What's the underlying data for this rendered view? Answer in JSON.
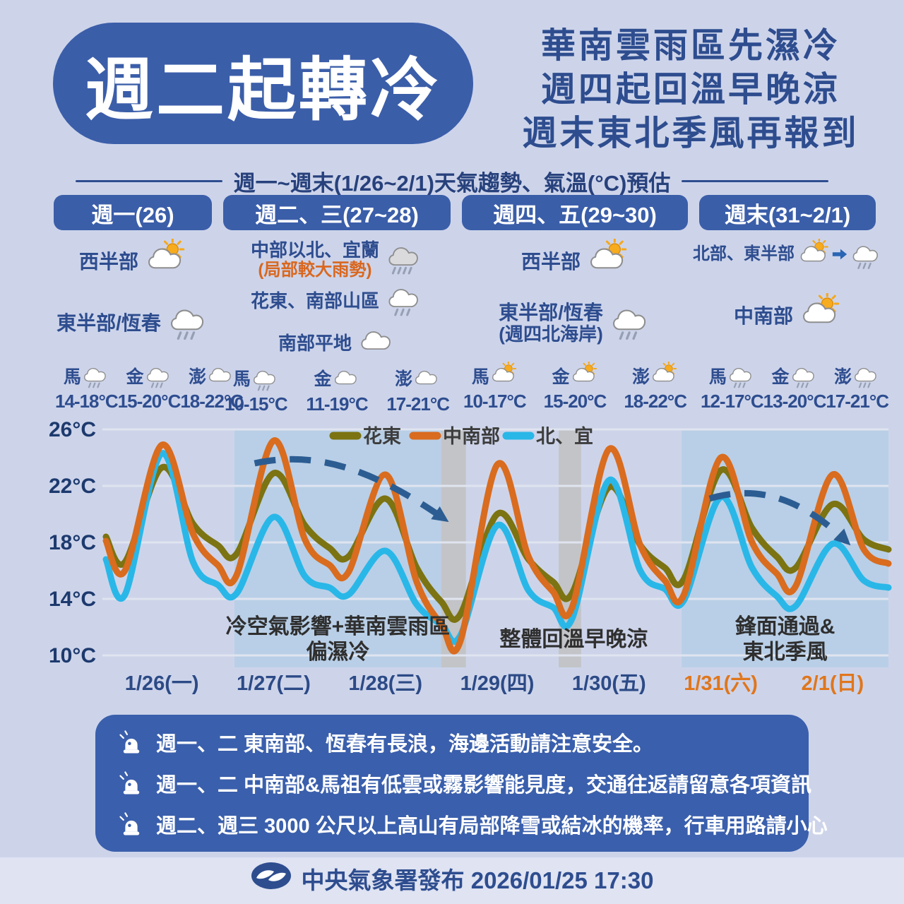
{
  "title": "週二起轉冷",
  "headline": {
    "lines": [
      "華南雲雨區先濕冷",
      "週四起回溫早晚涼",
      "週末東北季風再報到"
    ]
  },
  "subtitle": "週一~週末(1/26~2/1)天氣趨勢、氣溫(°C)預估",
  "forecast_columns": [
    {
      "header": "週一(26)",
      "regions": [
        {
          "label": "西半部",
          "icon": "partly-sunny"
        },
        {
          "label": "東半部/恆春",
          "icon": "rain"
        }
      ],
      "islands": [
        {
          "name": "馬",
          "icon": "rain",
          "temp": "14-18°C"
        },
        {
          "name": "金",
          "icon": "rain",
          "temp": "15-20°C"
        },
        {
          "name": "澎",
          "icon": "cloudy",
          "temp": "18-22°C"
        }
      ]
    },
    {
      "header": "週二、三(27~28)",
      "regions": [
        {
          "label": "中部以北、宜蘭",
          "sublabel": "(局部較大雨勢)",
          "sublabel_color": "#d9671e",
          "icon": "heavy-rain"
        },
        {
          "label": "花東、南部山區",
          "icon": "rain"
        },
        {
          "label": "南部平地",
          "icon": "cloudy"
        }
      ],
      "islands": [
        {
          "name": "馬",
          "icon": "rain",
          "temp": "10-15°C"
        },
        {
          "name": "金",
          "icon": "cloudy",
          "temp": "11-19°C"
        },
        {
          "name": "澎",
          "icon": "cloudy",
          "temp": "17-21°C"
        }
      ]
    },
    {
      "header": "週四、五(29~30)",
      "regions": [
        {
          "label": "西半部",
          "icon": "partly-sunny"
        },
        {
          "label": "東半部/恆春",
          "sublabel": "(週四北海岸)",
          "sublabel_color": "#2e4d8f",
          "icon": "rain"
        }
      ],
      "islands": [
        {
          "name": "馬",
          "icon": "partly-sunny",
          "temp": "10-17°C"
        },
        {
          "name": "金",
          "icon": "partly-sunny",
          "temp": "15-20°C"
        },
        {
          "name": "澎",
          "icon": "partly-sunny",
          "temp": "18-22°C"
        }
      ]
    },
    {
      "header": "週末(31~2/1)",
      "regions": [
        {
          "label": "北部、東半部",
          "icon": "partly-sunny-to-rain"
        },
        {
          "label": "中南部",
          "icon": "partly-sunny"
        }
      ],
      "islands": [
        {
          "name": "馬",
          "icon": "rain",
          "temp": "12-17°C"
        },
        {
          "name": "金",
          "icon": "rain",
          "temp": "13-20°C"
        },
        {
          "name": "澎",
          "icon": "rain",
          "temp": "17-21°C"
        }
      ]
    }
  ],
  "chart_data": {
    "type": "line",
    "title": "週一~週末(1/26~2/1)天氣趨勢、氣溫(°C)預估",
    "ylabel": "氣溫(°C)",
    "ylim": [
      10,
      26
    ],
    "yticks": [
      26,
      22,
      18,
      14,
      10
    ],
    "ytick_suffix": "°C",
    "grid": "horizontal",
    "legend_position": "top",
    "x_unit": "days since 1/26 00:00 (each day = 1.0, peak ≈ d+0.5)",
    "x_labels": [
      {
        "text": "1/26(一)",
        "color": "#2c4a86"
      },
      {
        "text": "1/27(二)",
        "color": "#2c4a86"
      },
      {
        "text": "1/28(三)",
        "color": "#2c4a86"
      },
      {
        "text": "1/29(四)",
        "color": "#2c4a86"
      },
      {
        "text": "1/30(五)",
        "color": "#2c4a86"
      },
      {
        "text": "1/31(六)",
        "color": "#e0761c"
      },
      {
        "text": "2/1(日)",
        "color": "#e0761c"
      }
    ],
    "series": [
      {
        "name": "花東",
        "color": "#7c7312",
        "points": [
          [
            0,
            18.4
          ],
          [
            0.17,
            16.6
          ],
          [
            0.5,
            23.3
          ],
          [
            0.78,
            19.3
          ],
          [
            1,
            17.8
          ],
          [
            1.17,
            17.2
          ],
          [
            1.5,
            22.9
          ],
          [
            1.78,
            19.2
          ],
          [
            2,
            17.6
          ],
          [
            2.17,
            17.0
          ],
          [
            2.5,
            21.1
          ],
          [
            2.78,
            16.2
          ],
          [
            3,
            13.8
          ],
          [
            3.17,
            12.9
          ],
          [
            3.5,
            20.0
          ],
          [
            3.78,
            16.8
          ],
          [
            4,
            15.2
          ],
          [
            4.17,
            14.4
          ],
          [
            4.5,
            21.9
          ],
          [
            4.78,
            17.8
          ],
          [
            5,
            16.2
          ],
          [
            5.17,
            15.4
          ],
          [
            5.5,
            23.1
          ],
          [
            5.78,
            19.0
          ],
          [
            6,
            17.0
          ],
          [
            6.17,
            16.2
          ],
          [
            6.5,
            20.7
          ],
          [
            6.78,
            18.2
          ],
          [
            7,
            17.5
          ]
        ]
      },
      {
        "name": "中南部",
        "color": "#d96c1e",
        "points": [
          [
            0,
            18.1
          ],
          [
            0.17,
            16.0
          ],
          [
            0.5,
            24.9
          ],
          [
            0.78,
            18.6
          ],
          [
            1,
            16.4
          ],
          [
            1.17,
            15.7
          ],
          [
            1.5,
            25.2
          ],
          [
            1.78,
            18.2
          ],
          [
            2,
            16.4
          ],
          [
            2.17,
            15.9
          ],
          [
            2.5,
            22.8
          ],
          [
            2.78,
            15.2
          ],
          [
            3,
            12.2
          ],
          [
            3.17,
            11.0
          ],
          [
            3.5,
            23.5
          ],
          [
            3.78,
            17.0
          ],
          [
            4,
            14.5
          ],
          [
            4.17,
            13.4
          ],
          [
            4.5,
            24.6
          ],
          [
            4.78,
            17.8
          ],
          [
            5,
            15.3
          ],
          [
            5.17,
            14.3
          ],
          [
            5.5,
            24.0
          ],
          [
            5.78,
            18.0
          ],
          [
            6,
            15.8
          ],
          [
            6.17,
            14.9
          ],
          [
            6.5,
            22.8
          ],
          [
            6.78,
            17.5
          ],
          [
            7,
            16.5
          ]
        ]
      },
      {
        "name": "北、宜",
        "color": "#29b7e8",
        "points": [
          [
            0,
            16.8
          ],
          [
            0.17,
            14.3
          ],
          [
            0.5,
            24.3
          ],
          [
            0.78,
            16.6
          ],
          [
            1,
            15.0
          ],
          [
            1.17,
            14.4
          ],
          [
            1.5,
            19.8
          ],
          [
            1.78,
            15.6
          ],
          [
            2,
            14.8
          ],
          [
            2.17,
            14.3
          ],
          [
            2.5,
            17.4
          ],
          [
            2.78,
            13.6
          ],
          [
            3,
            12.2
          ],
          [
            3.17,
            11.4
          ],
          [
            3.5,
            19.2
          ],
          [
            3.78,
            14.6
          ],
          [
            4,
            13.4
          ],
          [
            4.17,
            12.6
          ],
          [
            4.5,
            22.4
          ],
          [
            4.78,
            16.0
          ],
          [
            5,
            14.7
          ],
          [
            5.17,
            13.9
          ],
          [
            5.5,
            21.2
          ],
          [
            5.78,
            16.2
          ],
          [
            6,
            14.2
          ],
          [
            6.17,
            13.5
          ],
          [
            6.5,
            17.9
          ],
          [
            6.78,
            15.3
          ],
          [
            7,
            14.8
          ]
        ]
      }
    ],
    "shaded_regions": [
      {
        "from": 1.15,
        "to": 3.0,
        "color": "#b9cfe7",
        "label": [
          "冷空氣影響+華南雲雨區",
          "偏濕冷"
        ]
      },
      {
        "from": 3.0,
        "to": 3.22,
        "color": "#c3c4c7"
      },
      {
        "from": 3.22,
        "to": 5.15,
        "color": "none",
        "label": [
          "整體回溫早晚涼"
        ]
      },
      {
        "from": 4.05,
        "to": 4.25,
        "color": "#c3c4c7"
      },
      {
        "from": 5.15,
        "to": 7.0,
        "color": "#b9cfe7",
        "label": [
          "鋒面通過&",
          "東北季風"
        ]
      }
    ],
    "trend_arrows": [
      {
        "from": [
          1.33,
          23.6
        ],
        "to": [
          3.02,
          19.7
        ]
      },
      {
        "from": [
          5.4,
          21.1
        ],
        "to": [
          6.62,
          18.1
        ]
      }
    ],
    "arrow_color": "#2c5d92",
    "axis_text_color": "#1d3a6e",
    "grid_color": "#dfe4ef",
    "legend_text_color": "#3d3d3d",
    "annotation_color": "#2f2f2f"
  },
  "notes": {
    "items": [
      {
        "text": "週一、二 東南部、恆春有長浪，海邊活動請注意安全。"
      },
      {
        "text": "週一、二 中南部&馬祖有低雲或霧影響能見度，交通往返請留意各項資訊"
      },
      {
        "text": "週二、週三 3000 公尺以上高山有局部降雪或結冰的機率，行車用路請小心"
      }
    ]
  },
  "footer": {
    "publisher": "中央氣象署發布 2026/01/25 17:30"
  },
  "colors": {
    "background": "#cdd4ea",
    "panel_blue": "#3b5ea9",
    "notes_blue": "#3a5fac",
    "navy_text": "#2e4d8f",
    "orange_accent": "#e0761c"
  }
}
